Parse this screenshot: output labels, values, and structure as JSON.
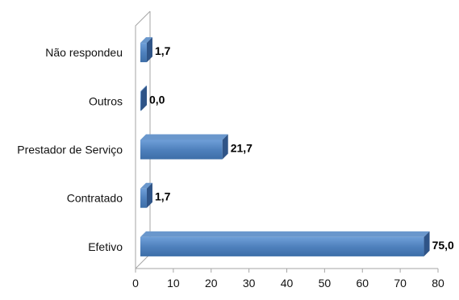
{
  "chart_data": {
    "type": "bar",
    "orientation": "horizontal",
    "style": "3d",
    "categories": [
      "Não respondeu",
      "Outros",
      "Prestador de Serviço",
      "Contratado",
      "Efetivo"
    ],
    "values": [
      1.7,
      0.0,
      21.7,
      1.7,
      75.0
    ],
    "value_labels": [
      "1,7",
      "0,0",
      "21,7",
      "1,7",
      "75,0"
    ],
    "xticks": [
      "0",
      "10",
      "20",
      "30",
      "40",
      "50",
      "60",
      "70",
      "80"
    ],
    "xlim": [
      0,
      80
    ],
    "title": "",
    "xlabel": "",
    "ylabel": "",
    "grid": false,
    "legend": "none",
    "colors": {
      "bar_front": "#4f81bd",
      "bar_top": "#6a97cc",
      "bar_side": "#2f5487",
      "axis": "#a6a6a6"
    }
  }
}
